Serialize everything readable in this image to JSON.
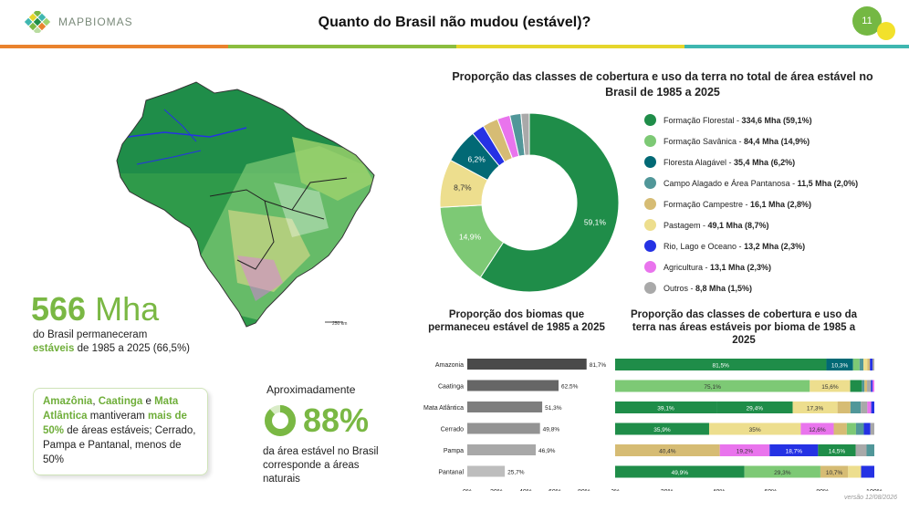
{
  "header": {
    "logo_text": "MAPBIOMAS",
    "title": "Quanto do Brasil não mudou (estável)?",
    "page_number": "11"
  },
  "colors": {
    "stripes": [
      "#e9822d",
      "#8bbd3f",
      "#e6d62b",
      "#3fb7b0"
    ],
    "accent_green": "#7ab844"
  },
  "map": {
    "scale_label": "250 km"
  },
  "summary": {
    "value": "566",
    "unit": "Mha",
    "line1": "do Brasil permaneceram",
    "highlight": "estáveis",
    "line2": "de 1985 a 2025 (66,5%)"
  },
  "note": {
    "b1": "Amazônia",
    "t1": ", ",
    "b2": "Caatinga",
    "t2": " e ",
    "b3": "Mata Atlântica",
    "t3": " mantiveram ",
    "b4": "mais de 50%",
    "t4": " de áreas estáveis; Cerrado, Pampa e Pantanal, menos de 50%"
  },
  "natural": {
    "approx": "Aproximadamente",
    "value": "88%",
    "ring_fraction": 0.88,
    "line": "da área estável no Brasil corresponde a áreas naturais"
  },
  "chart_data": [
    {
      "type": "pie",
      "title": "Proporção das classes de cobertura e uso da terra no total de área estável no Brasil de 1985 a 2025",
      "categories": [
        "Formação Florestal",
        "Formação Savânica",
        "Floresta Alagável",
        "Campo Alagado e Área Pantanosa",
        "Formação Campestre",
        "Pastagem",
        "Rio, Lago e Oceano",
        "Agricultura",
        "Outros"
      ],
      "values": [
        334.6,
        84.4,
        35.4,
        11.5,
        16.1,
        49.1,
        13.2,
        13.1,
        8.8
      ],
      "percents": [
        59.1,
        14.9,
        6.2,
        2.0,
        2.8,
        8.7,
        2.3,
        2.3,
        1.5
      ],
      "values_label": [
        "334,6 Mha (59,1%)",
        "84,4 Mha (14,9%)",
        "35,4 Mha (6,2%)",
        "11,5 Mha (2,0%)",
        "16,1 Mha (2,8%)",
        "49,1 Mha (8,7%)",
        "13,2 Mha (2,3%)",
        "13,1 Mha (2,3%)",
        "8,8 Mha (1,5%)"
      ],
      "colors": [
        "#1f8d49",
        "#7dc975",
        "#026975",
        "#519799",
        "#d6bc74",
        "#edde8e",
        "#2532e4",
        "#e974ed",
        "#a9a9a9"
      ],
      "slice_order": [
        0,
        1,
        5,
        2,
        6,
        4,
        7,
        3,
        8
      ],
      "slice_labels": {
        "0": "59,1%",
        "1": "14,9%",
        "5": "8,7%",
        "2": "6,2%"
      },
      "legend_position": "right"
    },
    {
      "type": "bar",
      "orientation": "horizontal",
      "title": "Proporção dos biomas que permaneceu estável de 1985 a 2025",
      "categories": [
        "Amazonia",
        "Caatinga",
        "Mata Atlântica",
        "Cerrado",
        "Pampa",
        "Pantanal"
      ],
      "values": [
        81.7,
        62.5,
        51.3,
        49.8,
        46.9,
        25.7
      ],
      "value_labels": [
        "81,7%",
        "62,5%",
        "51,3%",
        "49,8%",
        "46,9%",
        "25,7%"
      ],
      "colors": [
        "#4a4a4a",
        "#666666",
        "#7e7e7e",
        "#939393",
        "#a8a8a8",
        "#bdbdbd"
      ],
      "xlim": [
        0,
        80
      ],
      "xticks": [
        "0%",
        "20%",
        "40%",
        "60%",
        "80%"
      ]
    },
    {
      "type": "bar",
      "orientation": "horizontal",
      "stacked": true,
      "title": "Proporção das classes de cobertura e uso da terra nas áreas estáveis por bioma de 1985 a 2025",
      "categories": [
        "Amazonia",
        "Caatinga",
        "Mata Atlântica",
        "Cerrado",
        "Pampa",
        "Pantanal"
      ],
      "xlim": [
        0,
        100
      ],
      "xticks": [
        "0%",
        "20%",
        "40%",
        "60%",
        "80%",
        "100%"
      ],
      "rows": [
        [
          {
            "c": 0,
            "v": 81.5,
            "label": "81,5%"
          },
          {
            "c": 2,
            "v": 10.3,
            "label": "10,3%"
          },
          {
            "c": 1,
            "v": 2.5
          },
          {
            "c": 3,
            "v": 1.5
          },
          {
            "c": 5,
            "v": 1.5
          },
          {
            "c": 4,
            "v": 1.0
          },
          {
            "c": 6,
            "v": 1.0
          },
          {
            "c": 8,
            "v": 0.7
          }
        ],
        [
          {
            "c": 1,
            "v": 75.1,
            "label": "75,1%"
          },
          {
            "c": 5,
            "v": 15.6,
            "label": "15,6%"
          },
          {
            "c": 0,
            "v": 4.5
          },
          {
            "c": 3,
            "v": 1.0
          },
          {
            "c": 4,
            "v": 1.0
          },
          {
            "c": 8,
            "v": 1.5
          },
          {
            "c": 6,
            "v": 0.6
          },
          {
            "c": 7,
            "v": 0.7
          }
        ],
        [
          {
            "c": 0,
            "v": 39.1,
            "label": "39,1%"
          },
          {
            "c": 0,
            "v": 29.4,
            "label": "29,4%"
          },
          {
            "c": 5,
            "v": 17.3,
            "label": "17,3%"
          },
          {
            "c": 4,
            "v": 5.0
          },
          {
            "c": 3,
            "v": 4.0
          },
          {
            "c": 8,
            "v": 2.5
          },
          {
            "c": 7,
            "v": 1.5
          },
          {
            "c": 6,
            "v": 1.2
          }
        ],
        [
          {
            "c": 0,
            "v": 35.9,
            "label": "35,9%"
          },
          {
            "c": 5,
            "v": 35.0,
            "label": "35%"
          },
          {
            "c": 7,
            "v": 12.6,
            "label": "12,6%"
          },
          {
            "c": 4,
            "v": 5.0
          },
          {
            "c": 1,
            "v": 3.5
          },
          {
            "c": 3,
            "v": 3.0
          },
          {
            "c": 6,
            "v": 2.5
          },
          {
            "c": 8,
            "v": 1.5
          }
        ],
        [
          {
            "c": 4,
            "v": 40.4,
            "label": "40,4%"
          },
          {
            "c": 7,
            "v": 19.2,
            "label": "19,2%"
          },
          {
            "c": 6,
            "v": 18.7,
            "label": "18,7%"
          },
          {
            "c": 0,
            "v": 14.5,
            "label": "14,5%"
          },
          {
            "c": 8,
            "v": 4.2
          },
          {
            "c": 3,
            "v": 3.0
          }
        ],
        [
          {
            "c": 0,
            "v": 49.9,
            "label": "49,9%"
          },
          {
            "c": 1,
            "v": 29.3,
            "label": "29,3%"
          },
          {
            "c": 4,
            "v": 10.7,
            "label": "10,7%"
          },
          {
            "c": 5,
            "v": 5.0
          },
          {
            "c": 6,
            "v": 5.1
          }
        ]
      ]
    }
  ],
  "footer": {
    "version": "versão 12/08/2026"
  }
}
